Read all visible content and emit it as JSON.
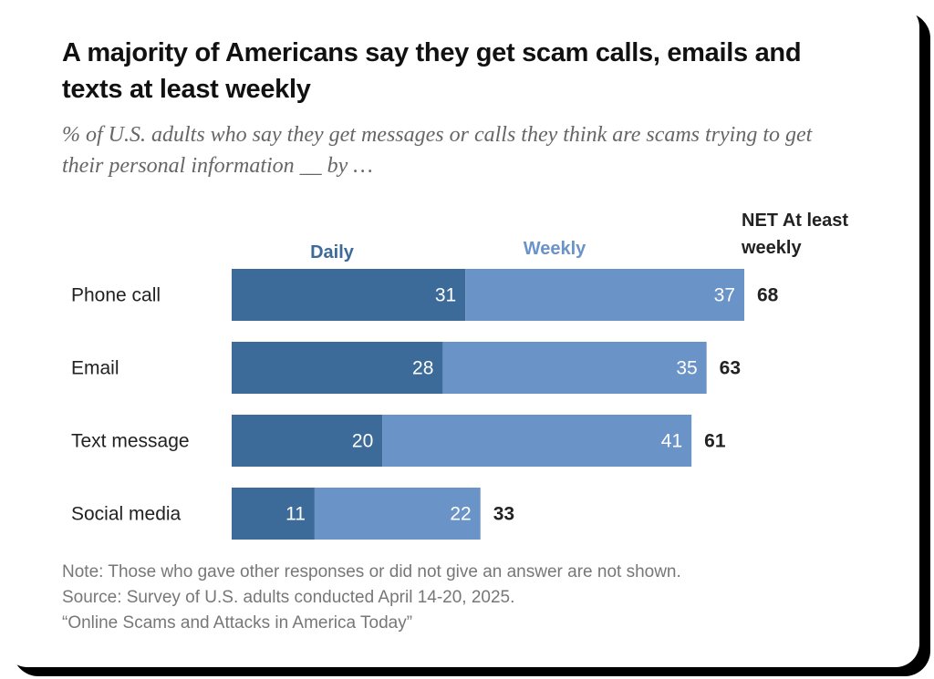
{
  "chart_data": {
    "type": "bar",
    "stacked": true,
    "orientation": "horizontal",
    "title": "A majority of Americans say they get scam calls, emails and texts at least weekly",
    "subtitle": "% of U.S. adults who say they get messages or calls they think are scams trying to get their personal information __ by …",
    "categories": [
      "Phone call",
      "Email",
      "Text message",
      "Social media"
    ],
    "series": [
      {
        "name": "Daily",
        "values": [
          31,
          28,
          20,
          11
        ],
        "color": "#3d6b99"
      },
      {
        "name": "Weekly",
        "values": [
          37,
          35,
          41,
          22
        ],
        "color": "#6a93c8"
      }
    ],
    "net": {
      "name": "NET At least weekly",
      "values": [
        68,
        63,
        61,
        33
      ]
    },
    "notes": [
      "Note: Those who gave other responses or did not give an answer are not shown.",
      "Source: Survey of U.S. adults conducted April 14-20, 2025.",
      "“Online Scams and Attacks in America Today”"
    ]
  }
}
